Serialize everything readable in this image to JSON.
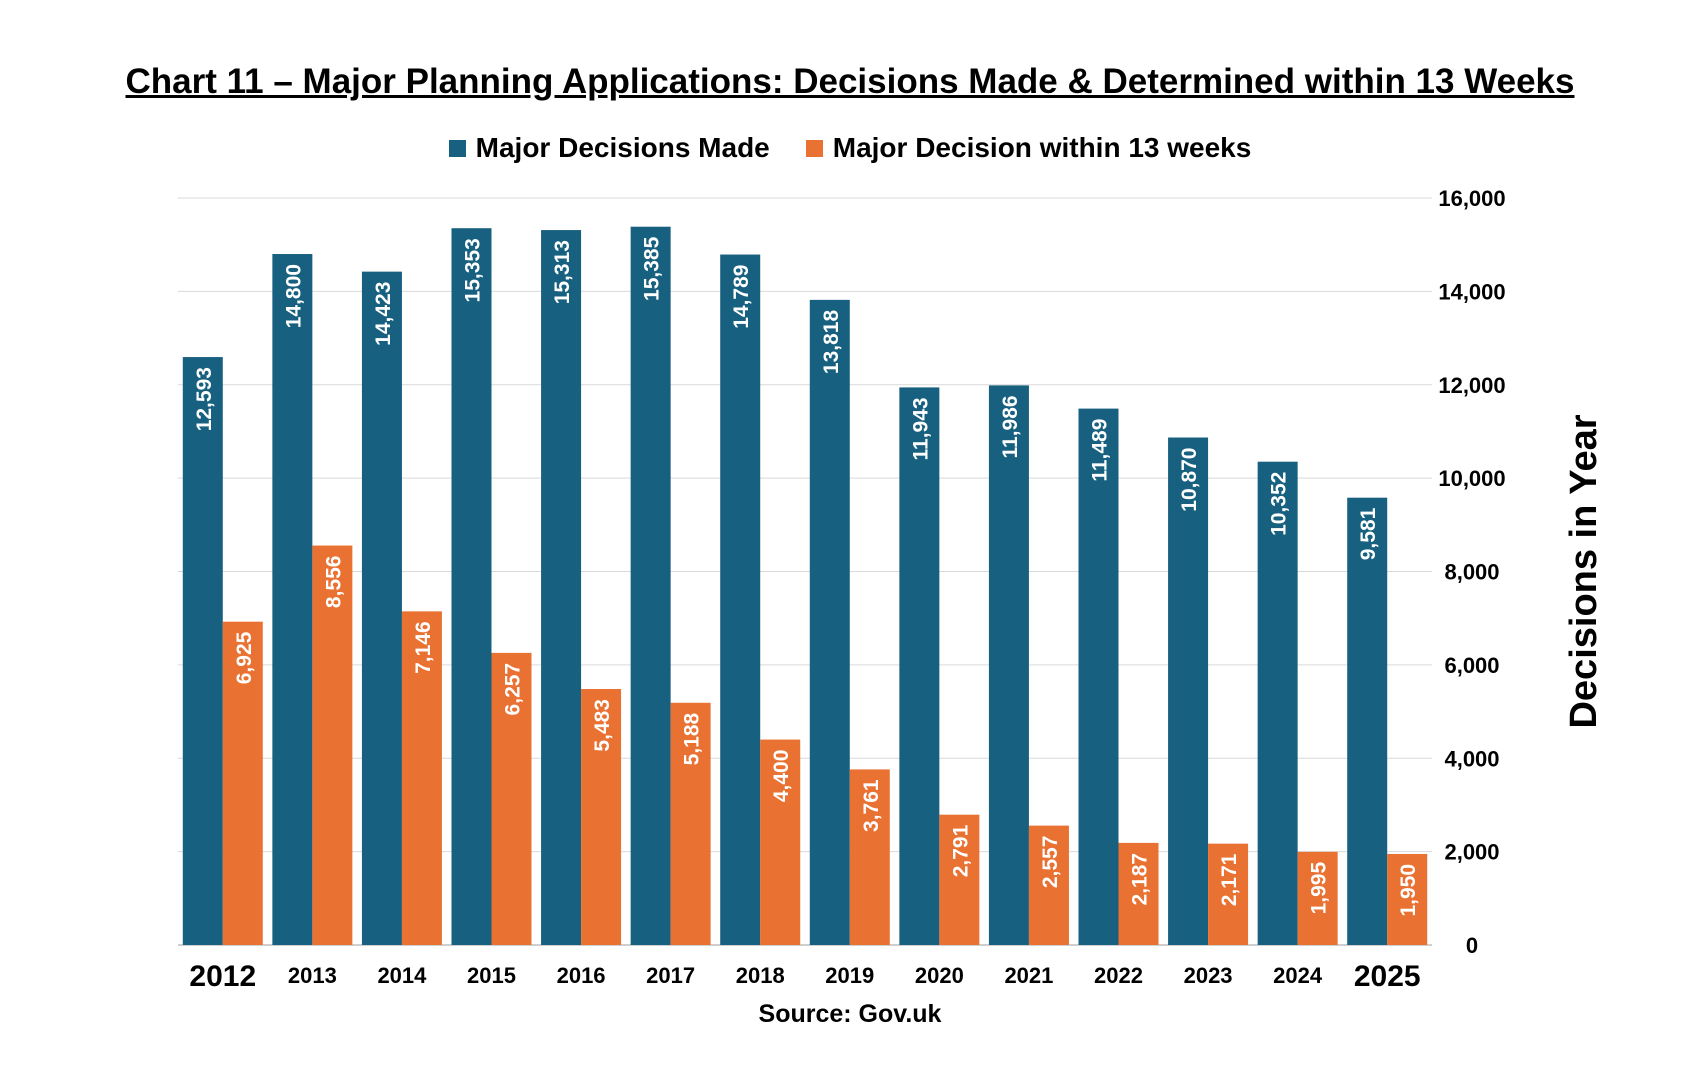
{
  "chart_data": {
    "type": "bar",
    "title": "Chart 11 – Major Planning Applications: Decisions Made & Determined within 13 Weeks",
    "ylabel": "Decisions in Year",
    "xlabel": "",
    "source": "Source: Gov.uk",
    "categories": [
      "2012",
      "2013",
      "2014",
      "2015",
      "2016",
      "2017",
      "2018",
      "2019",
      "2020",
      "2021",
      "2022",
      "2023",
      "2024",
      "2025"
    ],
    "series": [
      {
        "name": "Major Decisions Made",
        "color": "#17607f",
        "values": [
          12593,
          14800,
          14423,
          15353,
          15313,
          15385,
          14789,
          13818,
          11943,
          11986,
          11489,
          10870,
          10352,
          9581
        ],
        "labels": [
          "12,593",
          "14,800",
          "14,423",
          "15,353",
          "15,313",
          "15,385",
          "14,789",
          "13,818",
          "11,943",
          "11,986",
          "11,489",
          "10,870",
          "10,352",
          "9,581"
        ]
      },
      {
        "name": "Major Decision within 13 weeks",
        "color": "#e97132",
        "values": [
          6925,
          8556,
          7146,
          6257,
          5483,
          5188,
          4400,
          3761,
          2791,
          2557,
          2187,
          2171,
          1995,
          1950
        ],
        "labels": [
          "6,925",
          "8,556",
          "7,146",
          "6,257",
          "5,483",
          "5,188",
          "4,400",
          "3,761",
          "2,791",
          "2,557",
          "2,187",
          "2,171",
          "1,995",
          "1,950"
        ]
      }
    ],
    "ylim": [
      0,
      16000
    ],
    "yticks": [
      0,
      2000,
      4000,
      6000,
      8000,
      10000,
      12000,
      14000,
      16000
    ],
    "ytick_labels": [
      "0",
      "2,000",
      "4,000",
      "6,000",
      "8,000",
      "10,000",
      "12,000",
      "14,000",
      "16,000"
    ],
    "yaxis_position": "right",
    "grid": true,
    "legend_position": "top",
    "emphasized_categories": [
      "2012",
      "2025"
    ]
  }
}
